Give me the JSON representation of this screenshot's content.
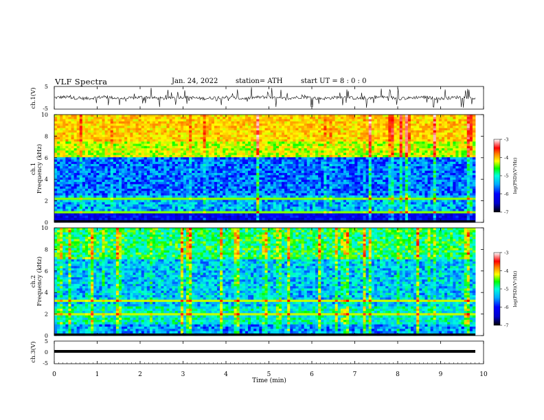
{
  "header": {
    "title": "VLF Spectra",
    "date": "Jan. 24, 2022",
    "station": "station= ATH",
    "start": "start UT =  8 : 0 : 0"
  },
  "colors": {
    "spectrogram_scale": [
      "#000000",
      "#0000cc",
      "#0000ff",
      "#00aaff",
      "#00ffdd",
      "#00ff00",
      "#ffff00",
      "#ff7f00",
      "#ff0000",
      "#ffffff"
    ]
  },
  "chart_data": [
    {
      "id": "ch1-waveform",
      "type": "line",
      "ylabel": "ch.1(V)",
      "ylim": [
        -5,
        5
      ],
      "yticks": [
        "5",
        "-5"
      ],
      "xlim": [
        0,
        10
      ],
      "description_visible": "noisy broadband waveform centered near 0 V with frequent spikes"
    },
    {
      "id": "ch1-spectrogram",
      "type": "heatmap",
      "ylabel_line1": "ch.1",
      "ylabel_line2": "Frequency (kHz)",
      "ylim": [
        0,
        10
      ],
      "yticks": [
        "0",
        "2",
        "4",
        "6",
        "8",
        "10"
      ],
      "xlim": [
        0,
        10
      ],
      "colorbar": {
        "label": "log(PSD)(V²/Hz)",
        "range": [
          -7,
          -3
        ],
        "ticks": [
          "-3",
          "-4",
          "-5",
          "-6",
          "-7"
        ]
      }
    },
    {
      "id": "ch2-spectrogram",
      "type": "heatmap",
      "ylabel_line1": "ch.2",
      "ylabel_line2": "Frequency (kHz)",
      "ylim": [
        0,
        10
      ],
      "yticks": [
        "0",
        "2",
        "4",
        "6",
        "8",
        "10"
      ],
      "xlim": [
        0,
        10
      ],
      "colorbar": {
        "label": "log(PSD)(V²/Hz)",
        "range": [
          -7,
          -3
        ],
        "ticks": [
          "-3",
          "-4",
          "-5",
          "-6",
          "-7"
        ]
      }
    },
    {
      "id": "ch3-waveform",
      "type": "line",
      "ylabel": "ch.3(V)",
      "ylim": [
        -5,
        5
      ],
      "yticks": [
        "5",
        "0",
        "-5"
      ],
      "xlim": [
        0,
        10
      ],
      "flat_level": 0
    }
  ],
  "x_axis": {
    "label": "Time (min)",
    "ticks": [
      "0",
      "1",
      "2",
      "3",
      "4",
      "5",
      "6",
      "7",
      "8",
      "9",
      "10"
    ]
  }
}
